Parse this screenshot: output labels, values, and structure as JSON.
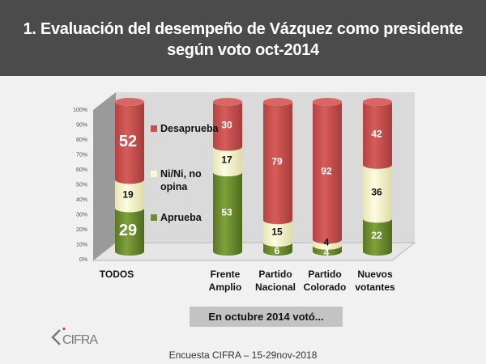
{
  "header": {
    "title_line1": "1.   Evaluación del desempeño de Vázquez como presidente",
    "title_line2": "según voto oct-2014"
  },
  "chart_data": {
    "type": "bar",
    "stacked": true,
    "style": "3d-cylinder",
    "title": "Evaluación del desempeño de Vázquez como presidente según voto oct-2014",
    "xlabel": "En octubre 2014 votó...",
    "ylabel": "",
    "ylim": [
      0,
      100
    ],
    "yticks": [
      "0%",
      "10%",
      "20%",
      "30%",
      "40%",
      "50%",
      "60%",
      "70%",
      "80%",
      "90%",
      "100%"
    ],
    "categories": [
      "TODOS",
      "Frente Amplio",
      "Partido Nacional",
      "Partido Colorado",
      "Nuevos votantes"
    ],
    "category_lines": [
      [
        "TODOS"
      ],
      [
        "Frente",
        "Amplio"
      ],
      [
        "Partido",
        "Nacional"
      ],
      [
        "Partido",
        "Colorado"
      ],
      [
        "Nuevos",
        "votantes"
      ]
    ],
    "series": [
      {
        "name": "Aprueba",
        "color": "#6e8f2e",
        "label_color": "#ffffff",
        "values": [
          29,
          53,
          6,
          4,
          22
        ]
      },
      {
        "name": "Ni/Ni, no opina",
        "color": "#fbf8d2",
        "label_color": "#111111",
        "values": [
          19,
          17,
          15,
          4,
          36
        ]
      },
      {
        "name": "Desaprueba",
        "color": "#c9504f",
        "label_color": "#ffffff",
        "values": [
          52,
          30,
          79,
          92,
          42
        ]
      }
    ],
    "legend": {
      "position": "inside-left",
      "entries": [
        {
          "label_lines": [
            "Desaprueba"
          ],
          "color": "#c9504f"
        },
        {
          "label_lines": [
            "Ni/Ni, no",
            "opina"
          ],
          "color": "#fbf8d2"
        },
        {
          "label_lines": [
            "Aprueba"
          ],
          "color": "#6e8f2e"
        }
      ]
    },
    "grid": false
  },
  "subtitle_box": "En octubre 2014 votó...",
  "logo": "CIFRA",
  "footer": "Encuesta CIFRA – 15-29nov-2018"
}
